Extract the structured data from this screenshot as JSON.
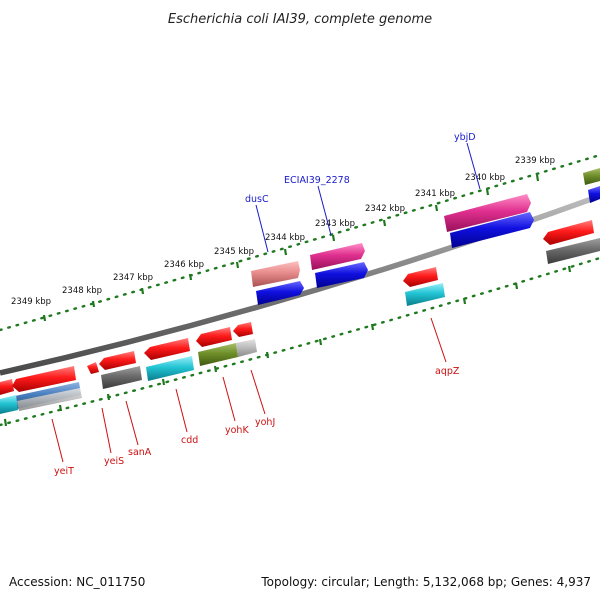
{
  "header": {
    "title": "Escherichia coli IAI39, complete genome"
  },
  "footer": {
    "accession": "Accession: NC_011750",
    "summary": "Topology: circular; Length: 5,132,068 bp; Genes: 4,937"
  },
  "ticks": [
    "2339 kbp",
    "2340 kbp",
    "2341 kbp",
    "2342 kbp",
    "2343 kbp",
    "2344 kbp",
    "2345 kbp",
    "2346 kbp",
    "2347 kbp",
    "2348 kbp",
    "2349 kbp"
  ],
  "labels_plus": [
    "ybjD",
    "ECIAI39_2278",
    "dusC"
  ],
  "labels_minus": [
    "aqpZ",
    "yohJ",
    "yohK",
    "cdd",
    "sanA",
    "yeiS",
    "yeiT"
  ],
  "colors": {
    "cds_plus": "#e8194a",
    "cds_minus": "#e8191f",
    "cds_blue": "#1010e0",
    "cds_magenta": "#e0308f",
    "cds_pink": "#e88c8c",
    "cds_olive": "#6f8f2a",
    "cds_gray": "#6a6a6a",
    "cds_cyan": "#22c4d4",
    "cds_steelblue": "#4a7fc0",
    "ruler_green": "#1f7a1f",
    "backbone": "#808080",
    "label_red": "#cc1111",
    "label_blue": "#1a1acc"
  }
}
